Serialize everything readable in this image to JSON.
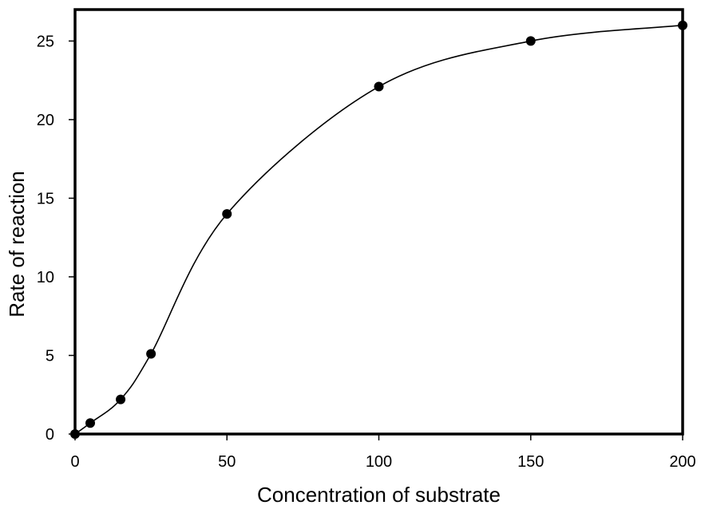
{
  "chart_data": {
    "type": "scatter",
    "title": "",
    "xlabel": "Concentration of substrate",
    "ylabel": "Rate of reaction",
    "xlim": [
      0,
      200
    ],
    "ylim": [
      0,
      27
    ],
    "xticks": [
      0,
      50,
      100,
      150,
      200
    ],
    "yticks": [
      0,
      5,
      10,
      15,
      20,
      25
    ],
    "grid": false,
    "legend": "none",
    "series": [
      {
        "x": [
          0,
          5,
          15,
          25,
          50,
          100,
          150,
          200
        ],
        "y": [
          0,
          0.7,
          2.2,
          5.1,
          14,
          22.1,
          25,
          26
        ],
        "marker": "circle",
        "line": "smooth",
        "color": "#000000"
      }
    ]
  }
}
